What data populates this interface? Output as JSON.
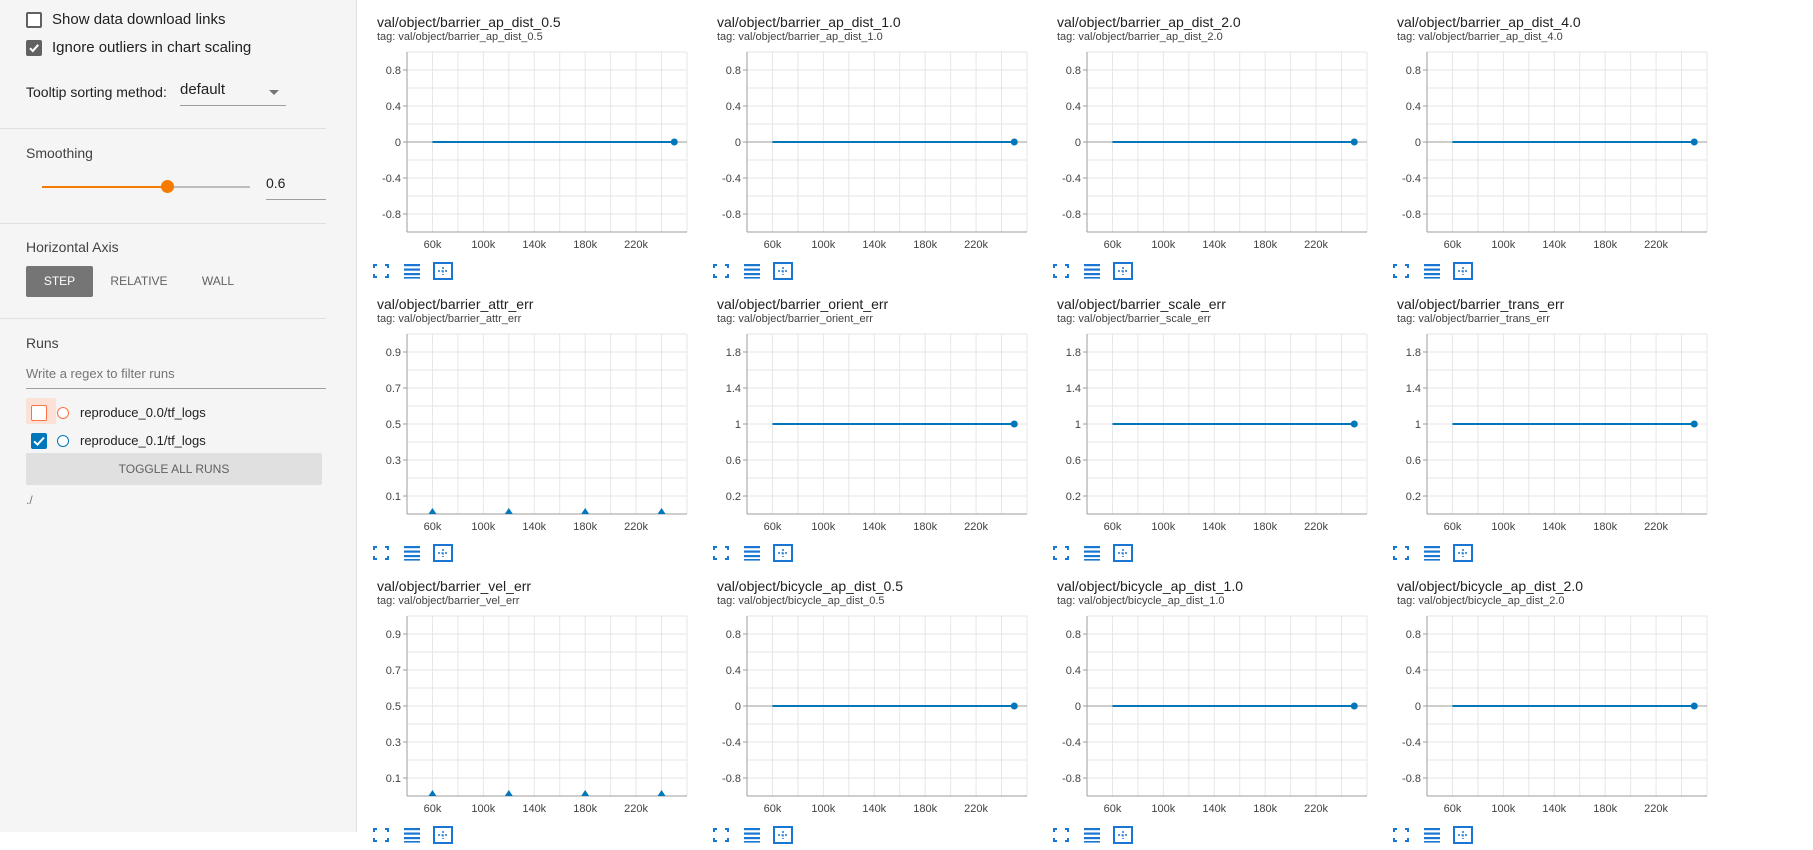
{
  "sidebar": {
    "show_download_label": "Show data download links",
    "show_download_checked": false,
    "ignore_outliers_label": "Ignore outliers in chart scaling",
    "ignore_outliers_checked": true,
    "tooltip_label": "Tooltip sorting method:",
    "tooltip_value": "default",
    "smoothing_title": "Smoothing",
    "smoothing_value": "0.6",
    "smoothing_fraction": 0.6,
    "horizontal_axis_title": "Horizontal Axis",
    "axis_options": [
      "STEP",
      "RELATIVE",
      "WALL"
    ],
    "axis_selected": "STEP",
    "runs_title": "Runs",
    "runs_filter_placeholder": "Write a regex to filter runs",
    "runs": [
      {
        "label": "reproduce_0.0/tf_logs",
        "checked": false,
        "color": "#ff7043"
      },
      {
        "label": "reproduce_0.1/tf_logs",
        "checked": true,
        "color": "#0077bb"
      }
    ],
    "toggle_all_label": "TOGGLE ALL RUNS",
    "dir_label": "./"
  },
  "colors": {
    "accent": "#f57c00",
    "series": "#0077bb",
    "toolbar_icon": "#1976d2"
  },
  "chart_data": [
    {
      "type": "line",
      "title": "val/object/barrier_ap_dist_0.5",
      "tag": "tag: val/object/barrier_ap_dist_0.5",
      "y_ticks": [
        "0.8",
        "0.4",
        "0",
        "-0.4",
        "-0.8"
      ],
      "ylim": [
        -1,
        1
      ],
      "x_ticks": [
        "60k",
        "100k",
        "140k",
        "180k",
        "220k"
      ],
      "xlim": [
        40000,
        260000
      ],
      "series": [
        {
          "x": [
            60000,
            250000
          ],
          "y": [
            0,
            0
          ]
        }
      ]
    },
    {
      "type": "line",
      "title": "val/object/barrier_ap_dist_1.0",
      "tag": "tag: val/object/barrier_ap_dist_1.0",
      "y_ticks": [
        "0.8",
        "0.4",
        "0",
        "-0.4",
        "-0.8"
      ],
      "ylim": [
        -1,
        1
      ],
      "x_ticks": [
        "60k",
        "100k",
        "140k",
        "180k",
        "220k"
      ],
      "xlim": [
        40000,
        260000
      ],
      "series": [
        {
          "x": [
            60000,
            250000
          ],
          "y": [
            0,
            0
          ]
        }
      ]
    },
    {
      "type": "line",
      "title": "val/object/barrier_ap_dist_2.0",
      "tag": "tag: val/object/barrier_ap_dist_2.0",
      "y_ticks": [
        "0.8",
        "0.4",
        "0",
        "-0.4",
        "-0.8"
      ],
      "ylim": [
        -1,
        1
      ],
      "x_ticks": [
        "60k",
        "100k",
        "140k",
        "180k",
        "220k"
      ],
      "xlim": [
        40000,
        260000
      ],
      "series": [
        {
          "x": [
            60000,
            250000
          ],
          "y": [
            0,
            0
          ]
        }
      ]
    },
    {
      "type": "line",
      "title": "val/object/barrier_ap_dist_4.0",
      "tag": "tag: val/object/barrier_ap_dist_4.0",
      "y_ticks": [
        "0.8",
        "0.4",
        "0",
        "-0.4",
        "-0.8"
      ],
      "ylim": [
        -1,
        1
      ],
      "x_ticks": [
        "60k",
        "100k",
        "140k",
        "180k",
        "220k"
      ],
      "xlim": [
        40000,
        260000
      ],
      "series": [
        {
          "x": [
            60000,
            250000
          ],
          "y": [
            0,
            0
          ]
        }
      ]
    },
    {
      "type": "scatter",
      "title": "val/object/barrier_attr_err",
      "tag": "tag: val/object/barrier_attr_err",
      "y_ticks": [
        "0.9",
        "0.7",
        "0.5",
        "0.3",
        "0.1"
      ],
      "ylim": [
        0,
        1
      ],
      "x_ticks": [
        "60k",
        "100k",
        "140k",
        "180k",
        "220k"
      ],
      "xlim": [
        40000,
        260000
      ],
      "series": [
        {
          "x": [
            60000,
            120000,
            180000,
            240000
          ],
          "y": [
            0,
            0,
            0,
            0
          ]
        }
      ]
    },
    {
      "type": "line",
      "title": "val/object/barrier_orient_err",
      "tag": "tag: val/object/barrier_orient_err",
      "y_ticks": [
        "1.8",
        "1.4",
        "1",
        "0.6",
        "0.2"
      ],
      "ylim": [
        0,
        2
      ],
      "x_ticks": [
        "60k",
        "100k",
        "140k",
        "180k",
        "220k"
      ],
      "xlim": [
        40000,
        260000
      ],
      "series": [
        {
          "x": [
            60000,
            250000
          ],
          "y": [
            1,
            1
          ]
        }
      ]
    },
    {
      "type": "line",
      "title": "val/object/barrier_scale_err",
      "tag": "tag: val/object/barrier_scale_err",
      "y_ticks": [
        "1.8",
        "1.4",
        "1",
        "0.6",
        "0.2"
      ],
      "ylim": [
        0,
        2
      ],
      "x_ticks": [
        "60k",
        "100k",
        "140k",
        "180k",
        "220k"
      ],
      "xlim": [
        40000,
        260000
      ],
      "series": [
        {
          "x": [
            60000,
            250000
          ],
          "y": [
            1,
            1
          ]
        }
      ]
    },
    {
      "type": "line",
      "title": "val/object/barrier_trans_err",
      "tag": "tag: val/object/barrier_trans_err",
      "y_ticks": [
        "1.8",
        "1.4",
        "1",
        "0.6",
        "0.2"
      ],
      "ylim": [
        0,
        2
      ],
      "x_ticks": [
        "60k",
        "100k",
        "140k",
        "180k",
        "220k"
      ],
      "xlim": [
        40000,
        260000
      ],
      "series": [
        {
          "x": [
            60000,
            250000
          ],
          "y": [
            1,
            1
          ]
        }
      ]
    },
    {
      "type": "scatter",
      "title": "val/object/barrier_vel_err",
      "tag": "tag: val/object/barrier_vel_err",
      "y_ticks": [
        "0.9",
        "0.7",
        "0.5",
        "0.3",
        "0.1"
      ],
      "ylim": [
        0,
        1
      ],
      "x_ticks": [
        "60k",
        "100k",
        "140k",
        "180k",
        "220k"
      ],
      "xlim": [
        40000,
        260000
      ],
      "series": [
        {
          "x": [
            60000,
            120000,
            180000,
            240000
          ],
          "y": [
            0,
            0,
            0,
            0
          ]
        }
      ]
    },
    {
      "type": "line",
      "title": "val/object/bicycle_ap_dist_0.5",
      "tag": "tag: val/object/bicycle_ap_dist_0.5",
      "y_ticks": [
        "0.8",
        "0.4",
        "0",
        "-0.4",
        "-0.8"
      ],
      "ylim": [
        -1,
        1
      ],
      "x_ticks": [
        "60k",
        "100k",
        "140k",
        "180k",
        "220k"
      ],
      "xlim": [
        40000,
        260000
      ],
      "series": [
        {
          "x": [
            60000,
            250000
          ],
          "y": [
            0,
            0
          ]
        }
      ]
    },
    {
      "type": "line",
      "title": "val/object/bicycle_ap_dist_1.0",
      "tag": "tag: val/object/bicycle_ap_dist_1.0",
      "y_ticks": [
        "0.8",
        "0.4",
        "0",
        "-0.4",
        "-0.8"
      ],
      "ylim": [
        -1,
        1
      ],
      "x_ticks": [
        "60k",
        "100k",
        "140k",
        "180k",
        "220k"
      ],
      "xlim": [
        40000,
        260000
      ],
      "series": [
        {
          "x": [
            60000,
            250000
          ],
          "y": [
            0,
            0
          ]
        }
      ]
    },
    {
      "type": "line",
      "title": "val/object/bicycle_ap_dist_2.0",
      "tag": "tag: val/object/bicycle_ap_dist_2.0",
      "y_ticks": [
        "0.8",
        "0.4",
        "0",
        "-0.4",
        "-0.8"
      ],
      "ylim": [
        -1,
        1
      ],
      "x_ticks": [
        "60k",
        "100k",
        "140k",
        "180k",
        "220k"
      ],
      "xlim": [
        40000,
        260000
      ],
      "series": [
        {
          "x": [
            60000,
            250000
          ],
          "y": [
            0,
            0
          ]
        }
      ]
    }
  ]
}
